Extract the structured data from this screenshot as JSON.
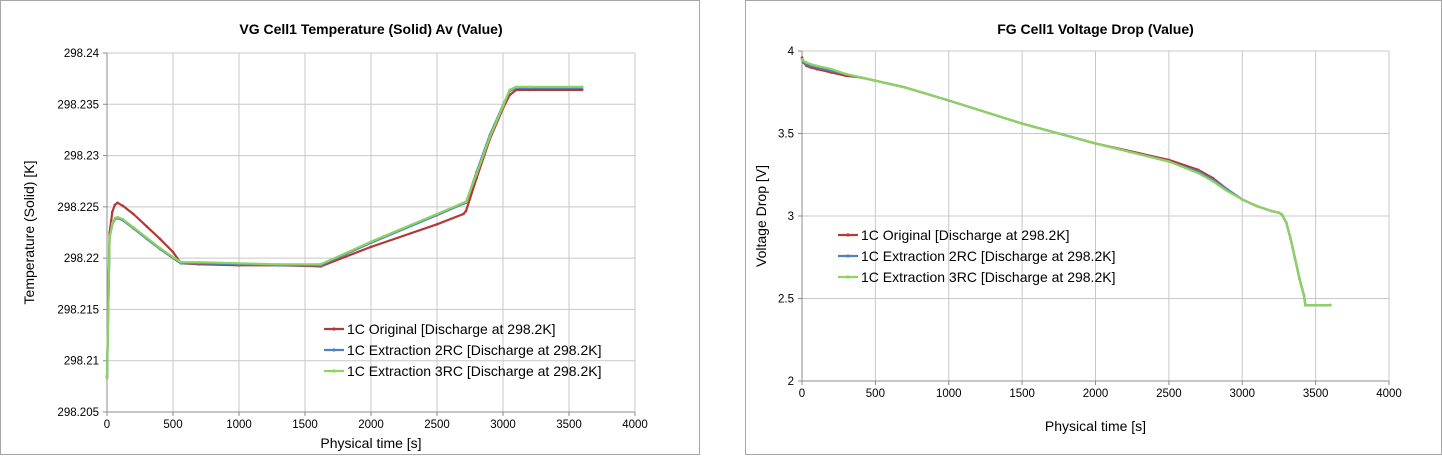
{
  "chart_data": [
    {
      "type": "line",
      "title": "VG Cell1 Temperature (Solid) Av (Value)",
      "xlabel": "Physical time [s]",
      "ylabel": "Temperature (Solid) [K]",
      "xlim": [
        0,
        4000
      ],
      "ylim": [
        298.205,
        298.24
      ],
      "xticks": [
        0,
        500,
        1000,
        1500,
        2000,
        2500,
        3000,
        3500,
        4000
      ],
      "yticks": [
        298.205,
        298.21,
        298.215,
        298.22,
        298.225,
        298.23,
        298.235,
        298.24
      ],
      "grid": true,
      "legend_position": "bottom-right",
      "series": [
        {
          "name": "1C Original [Discharge at 298.2K]",
          "color": "#b33939",
          "x": [
            0,
            20,
            40,
            60,
            80,
            120,
            200,
            300,
            400,
            500,
            560,
            700,
            1000,
            1300,
            1600,
            1620,
            2000,
            2500,
            2700,
            2720,
            2800,
            2900,
            3000,
            3050,
            3100,
            3200,
            3600
          ],
          "y": [
            298.2085,
            298.2225,
            298.2245,
            298.2252,
            298.2254,
            298.2251,
            298.2243,
            298.2231,
            298.2219,
            298.2206,
            298.2195,
            298.2194,
            298.2193,
            298.2193,
            298.2192,
            298.2192,
            298.2211,
            298.2233,
            298.2243,
            298.2246,
            298.2278,
            298.2316,
            298.2346,
            298.2359,
            298.2364,
            298.2364,
            298.2364
          ]
        },
        {
          "name": "1C Extraction 2RC [Discharge at 298.2K]",
          "color": "#4f81bd",
          "x": [
            0,
            20,
            40,
            60,
            80,
            120,
            200,
            300,
            400,
            500,
            560,
            700,
            1000,
            1300,
            1600,
            1620,
            2000,
            2500,
            2700,
            2720,
            2800,
            2900,
            3000,
            3050,
            3100,
            3200,
            3600
          ],
          "y": [
            298.2083,
            298.222,
            298.2233,
            298.2238,
            298.2239,
            298.2237,
            298.2229,
            298.2219,
            298.2209,
            298.22,
            298.2195,
            298.2195,
            298.2194,
            298.2193,
            298.2193,
            298.2193,
            298.2215,
            298.2242,
            298.2253,
            298.2254,
            298.2284,
            298.232,
            298.2349,
            298.2363,
            298.2366,
            298.2366,
            298.2366
          ]
        },
        {
          "name": "1C Extraction 3RC [Discharge at 298.2K]",
          "color": "#8dd35f",
          "x": [
            0,
            20,
            40,
            60,
            80,
            120,
            200,
            300,
            400,
            500,
            560,
            700,
            1000,
            1300,
            1600,
            1620,
            2000,
            2500,
            2700,
            2720,
            2800,
            2900,
            3000,
            3050,
            3100,
            3200,
            3600
          ],
          "y": [
            298.2083,
            298.222,
            298.2234,
            298.2239,
            298.224,
            298.2238,
            298.223,
            298.222,
            298.221,
            298.2201,
            298.2196,
            298.2196,
            298.2195,
            298.2194,
            298.2194,
            298.2194,
            298.2216,
            298.2243,
            298.2254,
            298.2255,
            298.2282,
            298.2318,
            298.2348,
            298.2364,
            298.2367,
            298.2367,
            298.2367
          ]
        }
      ]
    },
    {
      "type": "line",
      "title": "FG Cell1 Voltage Drop (Value)",
      "xlabel": "Physical time [s]",
      "ylabel": "Voltage Drop [V]",
      "xlim": [
        0,
        4000
      ],
      "ylim": [
        2,
        4
      ],
      "xticks": [
        0,
        500,
        1000,
        1500,
        2000,
        2500,
        3000,
        3500,
        4000
      ],
      "yticks": [
        2,
        2.5,
        3,
        3.5,
        4
      ],
      "grid": true,
      "legend_position": "center-left",
      "series": [
        {
          "name": "1C Original [Discharge at 298.2K]",
          "color": "#b33939",
          "x": [
            0,
            10,
            30,
            60,
            100,
            200,
            300,
            400,
            500,
            600,
            700,
            1000,
            1500,
            2000,
            2500,
            2700,
            2800,
            2900,
            3000,
            3100,
            3200,
            3250,
            3270,
            3300,
            3330,
            3360,
            3390,
            3420,
            3430,
            3500,
            3600
          ],
          "y": [
            3.96,
            3.93,
            3.91,
            3.9,
            3.89,
            3.87,
            3.85,
            3.84,
            3.82,
            3.8,
            3.78,
            3.7,
            3.56,
            3.44,
            3.34,
            3.28,
            3.23,
            3.16,
            3.1,
            3.06,
            3.03,
            3.02,
            3.01,
            2.96,
            2.86,
            2.74,
            2.62,
            2.52,
            2.46,
            2.46,
            2.46
          ]
        },
        {
          "name": "1C Extraction 2RC [Discharge at 298.2K]",
          "color": "#4f81bd",
          "x": [
            0,
            10,
            30,
            60,
            100,
            200,
            300,
            400,
            500,
            600,
            700,
            1000,
            1500,
            2000,
            2500,
            2700,
            2800,
            2900,
            3000,
            3100,
            3200,
            3250,
            3270,
            3300,
            3330,
            3360,
            3390,
            3420,
            3430,
            3500,
            3600
          ],
          "y": [
            3.95,
            3.93,
            3.92,
            3.91,
            3.9,
            3.88,
            3.86,
            3.84,
            3.82,
            3.8,
            3.78,
            3.7,
            3.56,
            3.44,
            3.33,
            3.27,
            3.22,
            3.16,
            3.1,
            3.06,
            3.03,
            3.02,
            3.01,
            2.96,
            2.86,
            2.74,
            2.62,
            2.52,
            2.46,
            2.46,
            2.46
          ]
        },
        {
          "name": "1C Extraction 3RC [Discharge at 298.2K]",
          "color": "#8dd35f",
          "x": [
            0,
            10,
            30,
            60,
            100,
            200,
            300,
            400,
            500,
            600,
            700,
            1000,
            1500,
            2000,
            2500,
            2700,
            2800,
            2900,
            3000,
            3100,
            3200,
            3250,
            3270,
            3300,
            3330,
            3360,
            3390,
            3420,
            3430,
            3500,
            3600
          ],
          "y": [
            3.95,
            3.94,
            3.93,
            3.92,
            3.91,
            3.89,
            3.86,
            3.84,
            3.82,
            3.8,
            3.78,
            3.7,
            3.56,
            3.44,
            3.33,
            3.26,
            3.21,
            3.15,
            3.1,
            3.06,
            3.03,
            3.02,
            3.01,
            2.96,
            2.86,
            2.74,
            2.62,
            2.52,
            2.46,
            2.46,
            2.46
          ]
        }
      ]
    }
  ]
}
